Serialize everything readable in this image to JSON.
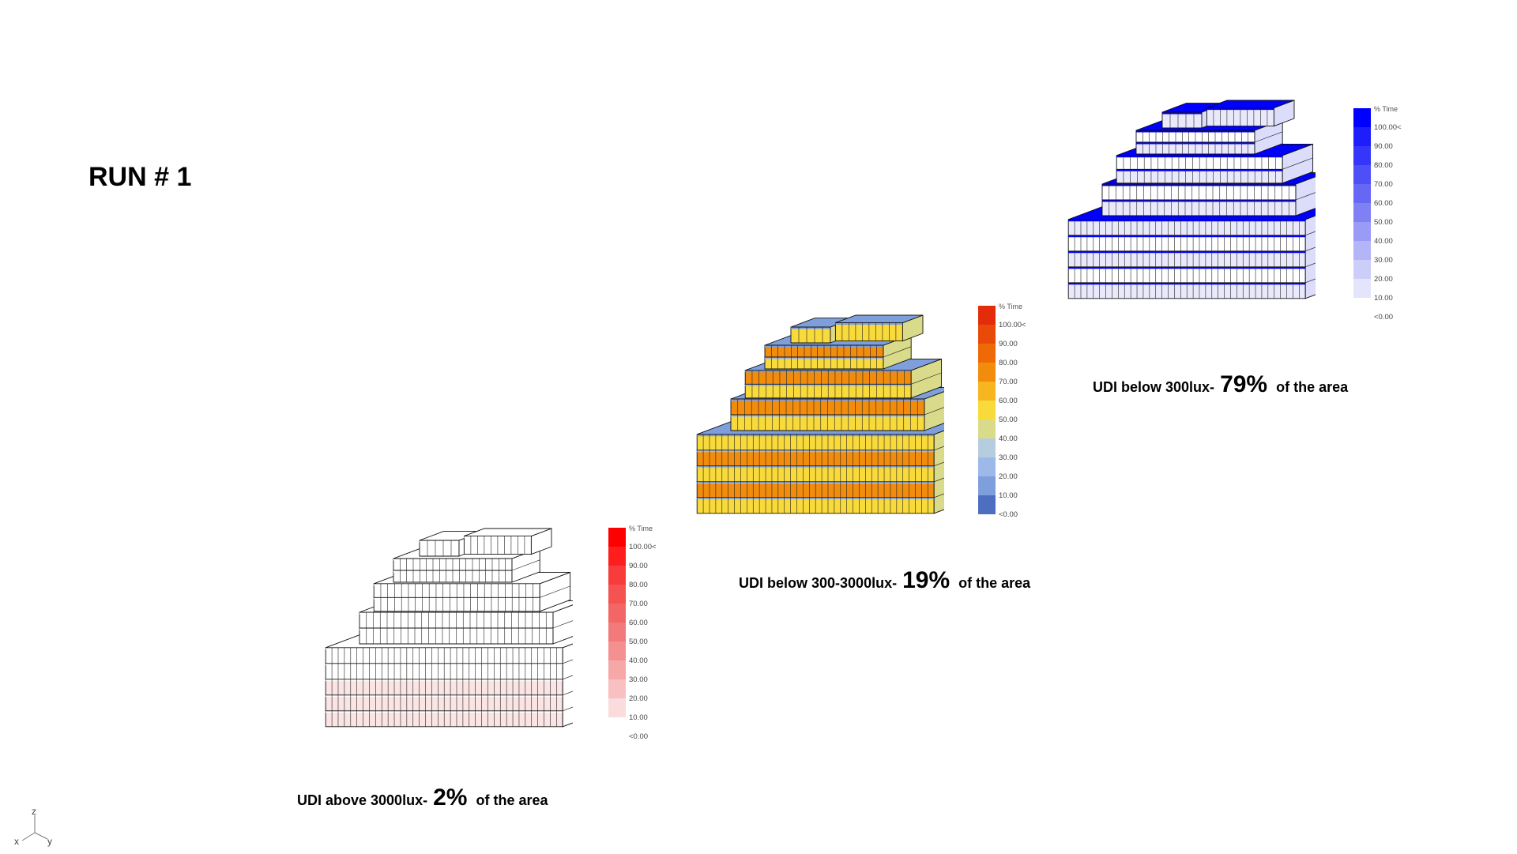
{
  "run_title": "RUN # 1",
  "legend_header": "% Time",
  "legend_labels": [
    "100.00<",
    "90.00",
    "80.00",
    "70.00",
    "60.00",
    "50.00",
    "40.00",
    "30.00",
    "20.00",
    "10.00",
    "<0.00"
  ],
  "captions": {
    "red": {
      "prefix": "UDI above 3000lux-",
      "pct": "2%",
      "suffix": "of the area"
    },
    "orange": {
      "prefix": "UDI below 300-3000lux-",
      "pct": "19%",
      "suffix": "of the area"
    },
    "blue": {
      "prefix": "UDI below 300lux-",
      "pct": "79%",
      "suffix": "of the area"
    }
  },
  "palettes": {
    "red": [
      "#ff0000",
      "#ff1e1e",
      "#f83c3c",
      "#f55252",
      "#f26666",
      "#f27a7a",
      "#f49090",
      "#f6a8a8",
      "#f8c0c0",
      "#fadcdc"
    ],
    "orange": [
      "#e32d0a",
      "#ea4a08",
      "#ef6a07",
      "#f28c0c",
      "#f7b51f",
      "#f9da3b",
      "#d9db8a",
      "#b6cde0",
      "#9db9ea",
      "#7f9fdc",
      "#4e6fc0"
    ],
    "blue": [
      "#0000ff",
      "#1e1efc",
      "#3636fa",
      "#4f4ff8",
      "#6767f6",
      "#8080f5",
      "#9a9af7",
      "#b4b4f8",
      "#cdcdfa",
      "#e4e4fc"
    ]
  },
  "axis_labels": {
    "z": "z",
    "x": "x",
    "y": "y"
  }
}
